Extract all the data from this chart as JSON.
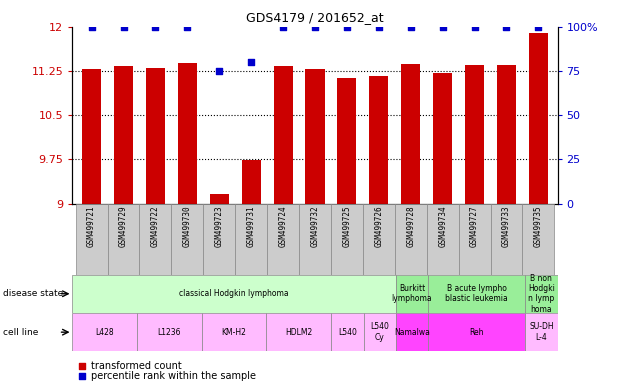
{
  "title": "GDS4179 / 201652_at",
  "samples": [
    "GSM499721",
    "GSM499729",
    "GSM499722",
    "GSM499730",
    "GSM499723",
    "GSM499731",
    "GSM499724",
    "GSM499732",
    "GSM499725",
    "GSM499726",
    "GSM499728",
    "GSM499734",
    "GSM499727",
    "GSM499733",
    "GSM499735"
  ],
  "bar_values": [
    11.29,
    11.33,
    11.31,
    11.38,
    9.17,
    9.74,
    11.33,
    11.28,
    11.14,
    11.16,
    11.37,
    11.22,
    11.35,
    11.35,
    11.9
  ],
  "percentile_values": [
    100,
    100,
    100,
    100,
    75,
    80,
    100,
    100,
    100,
    100,
    100,
    100,
    100,
    100,
    100
  ],
  "ylim_left": [
    9,
    12
  ],
  "ylim_right": [
    0,
    100
  ],
  "yticks_left": [
    9,
    9.75,
    10.5,
    11.25,
    12
  ],
  "yticks_right": [
    0,
    25,
    50,
    75,
    100
  ],
  "bar_color": "#cc0000",
  "percentile_color": "#0000cc",
  "disease_state_groups": [
    {
      "label": "classical Hodgkin lymphoma",
      "start": 0,
      "end": 9,
      "color": "#ccffcc"
    },
    {
      "label": "Burkitt\nlymphoma",
      "start": 10,
      "end": 10,
      "color": "#99ee99"
    },
    {
      "label": "B acute lympho\nblastic leukemia",
      "start": 11,
      "end": 13,
      "color": "#99ee99"
    },
    {
      "label": "B non\nHodgki\nn lymp\nhoma",
      "start": 14,
      "end": 14,
      "color": "#99ee99"
    }
  ],
  "cell_line_groups": [
    {
      "label": "L428",
      "start": 0,
      "end": 1,
      "color": "#ffbbff"
    },
    {
      "label": "L1236",
      "start": 2,
      "end": 3,
      "color": "#ffbbff"
    },
    {
      "label": "KM-H2",
      "start": 4,
      "end": 5,
      "color": "#ffbbff"
    },
    {
      "label": "HDLM2",
      "start": 6,
      "end": 7,
      "color": "#ffbbff"
    },
    {
      "label": "L540",
      "start": 8,
      "end": 8,
      "color": "#ffbbff"
    },
    {
      "label": "L540\nCy",
      "start": 9,
      "end": 9,
      "color": "#ffbbff"
    },
    {
      "label": "Namalwa",
      "start": 10,
      "end": 10,
      "color": "#ff44ff"
    },
    {
      "label": "Reh",
      "start": 11,
      "end": 13,
      "color": "#ff44ff"
    },
    {
      "label": "SU-DH\nL-4",
      "start": 14,
      "end": 14,
      "color": "#ffbbff"
    }
  ],
  "xtick_bg_color": "#cccccc",
  "bg_color": "#ffffff"
}
